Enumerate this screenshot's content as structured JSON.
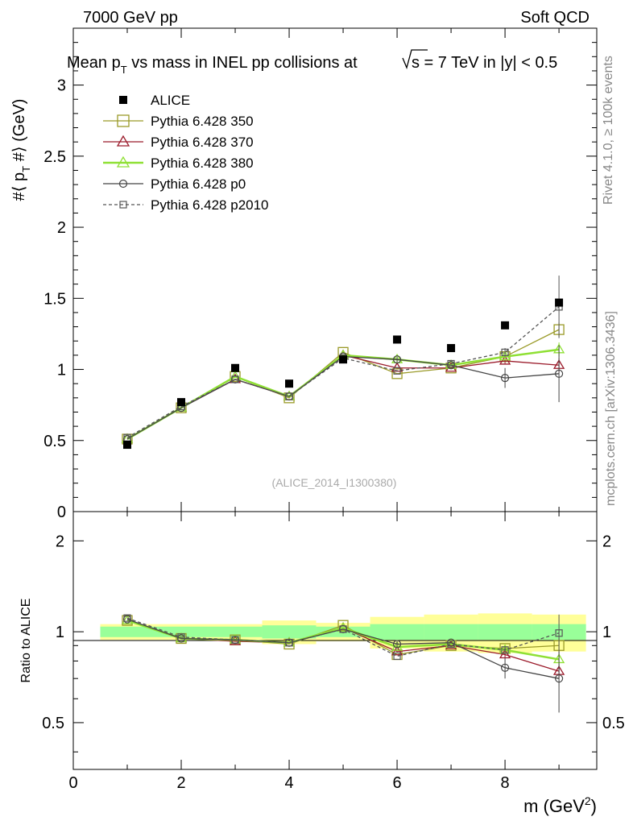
{
  "header": {
    "left": "7000 GeV pp",
    "right": "Soft QCD"
  },
  "title": {
    "prefix": "Mean p",
    "sub_t": "T",
    "middle": " vs mass in INEL pp collisions at ",
    "sqrt_s": "s",
    "suffix": " =  7 TeV in |y| < 0.5"
  },
  "side_labels": {
    "top": "Rivet 4.1.0, ≥ 100k events",
    "bottom": "mcplots.cern.ch [arXiv:1306.3436]"
  },
  "watermark": "(ALICE_2014_I1300380)",
  "axes": {
    "y_main_label": "#⟨ p_T #⟩ (GeV)",
    "y_main_parts": {
      "a": "#⟨ p",
      "sub": "T",
      "b": " #⟩ (GeV)"
    },
    "y_ratio_label": "Ratio to ALICE",
    "x_label": "m (GeV²)",
    "x_label_parts": {
      "a": "m (GeV",
      "sup": "2",
      "b": ")"
    },
    "x_ticks": [
      "0",
      "2",
      "4",
      "6",
      "8"
    ],
    "y_main_ticks": [
      "0",
      "0.5",
      "1",
      "1.5",
      "2",
      "2.5",
      "3"
    ],
    "y_ratio_ticks": [
      "0.5",
      "1",
      "2"
    ]
  },
  "chart_data": [
    {
      "type": "scatter",
      "panel": "main",
      "title": "Mean pT vs mass in INEL pp collisions at sqrt(s) = 7 TeV in |y| < 0.5",
      "xlabel": "m (GeV^2)",
      "ylabel": "<pT> (GeV)",
      "xlim": [
        0,
        9.7
      ],
      "ylim": [
        0,
        3.4
      ],
      "x": [
        1,
        2,
        3,
        4,
        5,
        6,
        7,
        8,
        9
      ],
      "series": [
        {
          "name": "ALICE",
          "style": "data",
          "marker": "filled-square",
          "color": "#000000",
          "values": [
            0.47,
            0.77,
            1.01,
            0.9,
            1.07,
            1.21,
            1.15,
            1.31,
            1.47
          ]
        },
        {
          "name": "Pythia 6.428 350",
          "style": "solid",
          "marker": "open-square",
          "color": "#9a9a28",
          "values": [
            0.51,
            0.73,
            0.95,
            0.8,
            1.12,
            0.97,
            1.01,
            1.09,
            1.28
          ],
          "errors": [
            0,
            0,
            0,
            0,
            0,
            0,
            0,
            0.02,
            0.05
          ]
        },
        {
          "name": "Pythia 6.428 370",
          "style": "solid",
          "marker": "open-triangle",
          "color": "#9b1b2b",
          "values": [
            0.51,
            0.73,
            0.93,
            0.81,
            1.1,
            1.01,
            1.01,
            1.06,
            1.03
          ],
          "errors": [
            0,
            0,
            0,
            0,
            0,
            0,
            0,
            0.02,
            0.05
          ]
        },
        {
          "name": "Pythia 6.428 380",
          "style": "solid-thick",
          "marker": "open-triangle",
          "color": "#8fe034",
          "values": [
            0.51,
            0.73,
            0.95,
            0.81,
            1.1,
            1.07,
            1.03,
            1.09,
            1.14
          ],
          "errors": [
            0,
            0,
            0,
            0,
            0,
            0,
            0,
            0.02,
            0.05
          ]
        },
        {
          "name": "Pythia 6.428 p0",
          "style": "solid",
          "marker": "open-circle",
          "color": "#444444",
          "values": [
            0.51,
            0.73,
            0.93,
            0.81,
            1.09,
            1.07,
            1.03,
            0.94,
            0.97
          ],
          "errors": [
            0,
            0,
            0,
            0,
            0,
            0.02,
            0,
            0.07,
            0.2
          ]
        },
        {
          "name": "Pythia 6.428 p2010",
          "style": "dashed",
          "marker": "open-square-small",
          "color": "#555555",
          "values": [
            0.52,
            0.74,
            0.93,
            0.81,
            1.08,
            0.99,
            1.04,
            1.12,
            1.44
          ],
          "errors": [
            0,
            0,
            0,
            0,
            0,
            0,
            0,
            0.03,
            0.22
          ]
        }
      ]
    },
    {
      "type": "scatter",
      "panel": "ratio",
      "ylabel": "Ratio to ALICE",
      "ylim_log": [
        0.35,
        2.5
      ],
      "x": [
        1,
        2,
        3,
        4,
        5,
        6,
        7,
        8,
        9
      ],
      "bands": {
        "bins": [
          [
            0.5,
            1.5
          ],
          [
            1.5,
            2.5
          ],
          [
            2.5,
            3.5
          ],
          [
            3.5,
            4.5
          ],
          [
            4.5,
            5.5
          ],
          [
            5.5,
            6.5
          ],
          [
            6.5,
            7.5
          ],
          [
            7.5,
            8.5
          ],
          [
            8.5,
            9.5
          ]
        ],
        "stat": [
          0.04,
          0.04,
          0.04,
          0.05,
          0.04,
          0.06,
          0.06,
          0.06,
          0.06
        ],
        "total": [
          0.06,
          0.06,
          0.06,
          0.09,
          0.07,
          0.12,
          0.14,
          0.15,
          0.14
        ]
      },
      "series": [
        {
          "name": "Pythia 6.428 350",
          "values": [
            1.09,
            0.95,
            0.94,
            0.91,
            1.05,
            0.84,
            0.9,
            0.88,
            0.9
          ],
          "errors": [
            0,
            0,
            0,
            0,
            0,
            0,
            0,
            0.02,
            0.05
          ]
        },
        {
          "name": "Pythia 6.428 370",
          "values": [
            1.09,
            0.95,
            0.93,
            0.92,
            1.03,
            0.86,
            0.9,
            0.84,
            0.74
          ],
          "errors": [
            0,
            0,
            0,
            0,
            0,
            0,
            0,
            0.02,
            0.04
          ]
        },
        {
          "name": "Pythia 6.428 380",
          "values": [
            1.09,
            0.95,
            0.94,
            0.92,
            1.03,
            0.89,
            0.91,
            0.87,
            0.81
          ],
          "errors": [
            0,
            0,
            0,
            0,
            0,
            0,
            0,
            0.02,
            0.04
          ]
        },
        {
          "name": "Pythia 6.428 p0",
          "values": [
            1.1,
            0.95,
            0.94,
            0.92,
            1.02,
            0.91,
            0.92,
            0.76,
            0.7
          ],
          "errors": [
            0,
            0,
            0,
            0,
            0,
            0.02,
            0,
            0.06,
            0.16
          ]
        },
        {
          "name": "Pythia 6.428 p2010",
          "values": [
            1.11,
            0.96,
            0.94,
            0.92,
            1.02,
            0.83,
            0.91,
            0.87,
            0.99
          ],
          "errors": [
            0,
            0,
            0,
            0,
            0,
            0,
            0,
            0.02,
            0.15
          ]
        }
      ]
    }
  ]
}
